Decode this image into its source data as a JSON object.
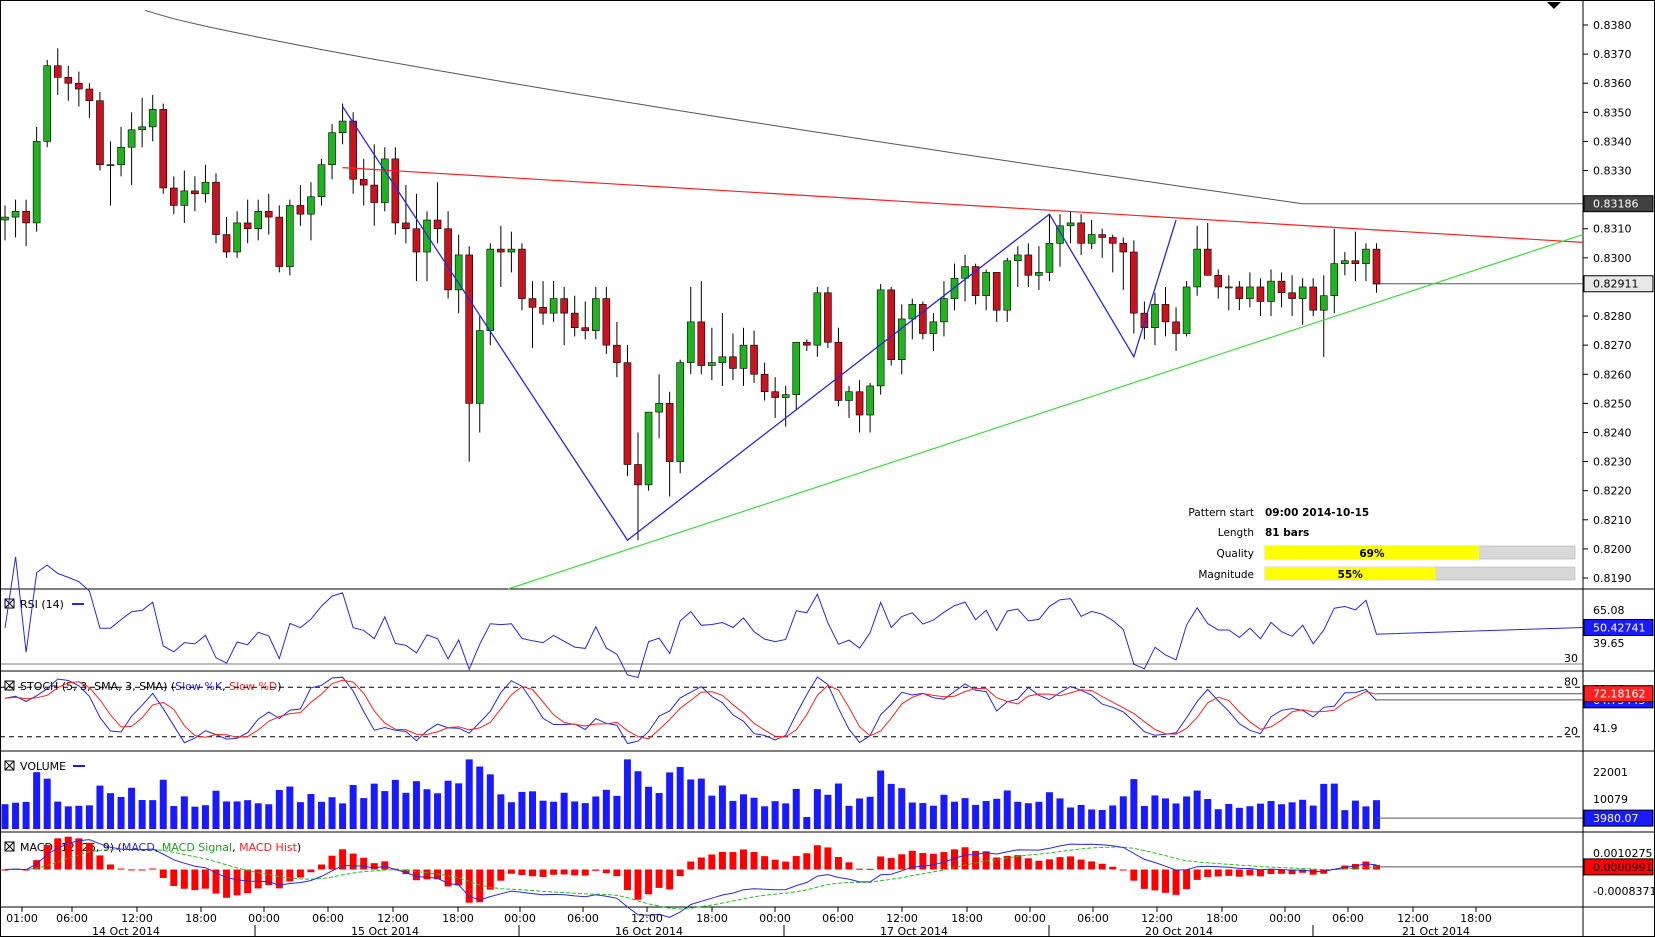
{
  "colors": {
    "bull": "#1fb41f",
    "bear": "#c8141e",
    "resistance": "#ff2020",
    "support": "#3cdc3c",
    "pattern": "#2828e0",
    "ma": "#555555",
    "rsi": "#2828e0",
    "stoch_k": "#2828e0",
    "stoch_d": "#ff2020",
    "volume": "#1a1aff",
    "macd": "#2828e0",
    "signal": "#20c020",
    "hist": "#ff0000",
    "quality_fill": "#ffff00"
  },
  "info": {
    "pattern_start_label": "Pattern start",
    "pattern_start_value": "09:00 2014-10-15",
    "length_label": "Length",
    "length_value": "81 bars",
    "quality_label": "Quality",
    "quality_value": "69%",
    "quality_fraction": 0.69,
    "magnitude_label": "Magnitude",
    "magnitude_value": "55%",
    "magnitude_fraction": 0.55
  },
  "panes": {
    "rsi": {
      "title": "RSI (14)",
      "value_box": "50.42741",
      "ticks": [
        "65.08",
        "39.65",
        "30"
      ]
    },
    "stoch": {
      "title_prefix": "STOCH (5, 3, SMA, 3, SMA) (",
      "k_label": "Slow %K",
      "sep": ", ",
      "d_label": "Slow %D",
      "title_suffix": ")",
      "value_box": "72.18162",
      "value_box2": "64.75443",
      "ticks": [
        "80",
        "41.9",
        "20"
      ],
      "top_tick": "81.09"
    },
    "volume": {
      "title": "VOLUME",
      "value_box": "3980.07",
      "ticks": [
        "22001",
        "10079"
      ]
    },
    "macd": {
      "title_prefix": "MACD (12, 26, 9) (",
      "macd_label": "MACD",
      "sep1": ", ",
      "signal_label": "MACD Signal",
      "sep2": ", ",
      "hist_label": "MACD Hist",
      "title_suffix": ")",
      "value_box": "0.0000991",
      "ticks": [
        "-0.0008371"
      ],
      "top_tick": "0.0010275"
    }
  },
  "price_axis": {
    "ticks": [
      "0.8380",
      "0.8370",
      "0.8360",
      "0.8350",
      "0.8340",
      "0.8330",
      "0.8320",
      "0.8310",
      "0.8300",
      "0.8290",
      "0.8280",
      "0.8270",
      "0.8260",
      "0.8250",
      "0.8240",
      "0.8230",
      "0.8220",
      "0.8210",
      "0.8200",
      "0.8190"
    ],
    "ma_box": "0.83186",
    "last_box": "0.82911"
  },
  "time_axis": {
    "hours": [
      "01:00",
      "06:00",
      "12:00",
      "18:00",
      "00:00",
      "06:00",
      "12:00",
      "18:00",
      "00:00",
      "06:00",
      "12:00",
      "18:00",
      "00:00",
      "06:00",
      "12:00",
      "18:00",
      "00:00",
      "06:00",
      "12:00",
      "18:00",
      "00:00",
      "06:00",
      "12:00",
      "18:00"
    ],
    "dates": [
      "14 Oct 2014",
      "15 Oct 2014",
      "16 Oct 2014",
      "17 Oct 2014",
      "20 Oct 2014",
      "21 Oct 2014"
    ]
  },
  "chart_data": {
    "type": "candlestick",
    "interval": "hourly",
    "x_range": [
      "2014-10-14 01:00",
      "2014-10-21 06:00"
    ],
    "y_range": [
      0.8185,
      0.8385
    ],
    "candles_ohlc": [
      [
        0.8313,
        0.8318,
        0.8306,
        0.8314
      ],
      [
        0.8314,
        0.832,
        0.8307,
        0.8316
      ],
      [
        0.8316,
        0.832,
        0.8304,
        0.8312
      ],
      [
        0.8312,
        0.8345,
        0.8309,
        0.834
      ],
      [
        0.834,
        0.8368,
        0.8338,
        0.8366
      ],
      [
        0.8366,
        0.8372,
        0.8356,
        0.8362
      ],
      [
        0.8362,
        0.8366,
        0.8354,
        0.836
      ],
      [
        0.836,
        0.8364,
        0.8352,
        0.8358
      ],
      [
        0.8358,
        0.836,
        0.8348,
        0.8354
      ],
      [
        0.8354,
        0.8357,
        0.833,
        0.8332
      ],
      [
        0.8332,
        0.834,
        0.8318,
        0.8332
      ],
      [
        0.8332,
        0.8345,
        0.8328,
        0.8338
      ],
      [
        0.8338,
        0.835,
        0.8325,
        0.8344
      ],
      [
        0.8344,
        0.8355,
        0.8338,
        0.8345
      ],
      [
        0.8345,
        0.8356,
        0.834,
        0.8351
      ],
      [
        0.8351,
        0.8353,
        0.8322,
        0.8324
      ],
      [
        0.8324,
        0.8328,
        0.8315,
        0.8318
      ],
      [
        0.8318,
        0.833,
        0.8312,
        0.8323
      ],
      [
        0.8323,
        0.8328,
        0.8316,
        0.8322
      ],
      [
        0.8322,
        0.8332,
        0.8319,
        0.8326
      ],
      [
        0.8326,
        0.8329,
        0.8305,
        0.8308
      ],
      [
        0.8308,
        0.8314,
        0.83,
        0.8302
      ],
      [
        0.8302,
        0.8316,
        0.83,
        0.8312
      ],
      [
        0.8312,
        0.832,
        0.8305,
        0.831
      ],
      [
        0.831,
        0.832,
        0.8306,
        0.8316
      ],
      [
        0.8316,
        0.8322,
        0.8308,
        0.8314
      ],
      [
        0.8314,
        0.8318,
        0.8295,
        0.8297
      ],
      [
        0.8297,
        0.832,
        0.8294,
        0.8318
      ],
      [
        0.8318,
        0.8325,
        0.8311,
        0.8315
      ],
      [
        0.8315,
        0.8326,
        0.8306,
        0.8321
      ],
      [
        0.8321,
        0.8334,
        0.8318,
        0.8332
      ],
      [
        0.8332,
        0.8346,
        0.8327,
        0.8343
      ],
      [
        0.8343,
        0.8353,
        0.8339,
        0.8347
      ],
      [
        0.8347,
        0.835,
        0.8322,
        0.8327
      ],
      [
        0.8327,
        0.8334,
        0.8318,
        0.8325
      ],
      [
        0.8325,
        0.8339,
        0.8311,
        0.8319
      ],
      [
        0.8319,
        0.8338,
        0.8316,
        0.8334
      ],
      [
        0.8334,
        0.8338,
        0.8308,
        0.8312
      ],
      [
        0.8312,
        0.8325,
        0.8305,
        0.831
      ],
      [
        0.831,
        0.8322,
        0.8292,
        0.8302
      ],
      [
        0.8302,
        0.8316,
        0.8292,
        0.8313
      ],
      [
        0.8313,
        0.8326,
        0.8305,
        0.831
      ],
      [
        0.831,
        0.8316,
        0.8286,
        0.8289
      ],
      [
        0.8289,
        0.8308,
        0.8281,
        0.8301
      ],
      [
        0.8301,
        0.8304,
        0.823,
        0.825
      ],
      [
        0.825,
        0.828,
        0.824,
        0.8275
      ],
      [
        0.8275,
        0.8305,
        0.827,
        0.8303
      ],
      [
        0.8303,
        0.8311,
        0.829,
        0.8302
      ],
      [
        0.8302,
        0.8309,
        0.8295,
        0.8303
      ],
      [
        0.8303,
        0.8305,
        0.8282,
        0.8286
      ],
      [
        0.8286,
        0.8292,
        0.8269,
        0.8283
      ],
      [
        0.8283,
        0.8292,
        0.8277,
        0.8281
      ],
      [
        0.8281,
        0.8292,
        0.8278,
        0.8286
      ],
      [
        0.8286,
        0.829,
        0.827,
        0.8281
      ],
      [
        0.8281,
        0.8287,
        0.8273,
        0.8276
      ],
      [
        0.8276,
        0.8285,
        0.8272,
        0.8275
      ],
      [
        0.8275,
        0.829,
        0.8272,
        0.8286
      ],
      [
        0.8286,
        0.829,
        0.8267,
        0.827
      ],
      [
        0.827,
        0.8278,
        0.8259,
        0.8264
      ],
      [
        0.8264,
        0.827,
        0.8225,
        0.8229
      ],
      [
        0.8229,
        0.824,
        0.8203,
        0.8222
      ],
      [
        0.8222,
        0.8246,
        0.822,
        0.8247
      ],
      [
        0.8247,
        0.826,
        0.8238,
        0.825
      ],
      [
        0.825,
        0.8254,
        0.8218,
        0.823
      ],
      [
        0.823,
        0.8265,
        0.8226,
        0.8264
      ],
      [
        0.8264,
        0.829,
        0.826,
        0.8278
      ],
      [
        0.8278,
        0.8292,
        0.826,
        0.8263
      ],
      [
        0.8263,
        0.8276,
        0.8258,
        0.8264
      ],
      [
        0.8264,
        0.8281,
        0.8256,
        0.8266
      ],
      [
        0.8266,
        0.8274,
        0.8258,
        0.8262
      ],
      [
        0.8262,
        0.8276,
        0.8256,
        0.827
      ],
      [
        0.827,
        0.8275,
        0.8257,
        0.826
      ],
      [
        0.826,
        0.8264,
        0.8251,
        0.8254
      ],
      [
        0.8254,
        0.8259,
        0.8245,
        0.8252
      ],
      [
        0.8252,
        0.8256,
        0.8242,
        0.8253
      ],
      [
        0.8253,
        0.8271,
        0.8248,
        0.8271
      ],
      [
        0.8271,
        0.8272,
        0.8268,
        0.827
      ],
      [
        0.827,
        0.829,
        0.8266,
        0.8288
      ],
      [
        0.8288,
        0.829,
        0.8269,
        0.8271
      ],
      [
        0.8271,
        0.8276,
        0.8249,
        0.8251
      ],
      [
        0.8251,
        0.8256,
        0.8245,
        0.8254
      ],
      [
        0.8254,
        0.8258,
        0.824,
        0.8246
      ],
      [
        0.8246,
        0.8257,
        0.824,
        0.8256
      ],
      [
        0.8256,
        0.8291,
        0.8253,
        0.8289
      ],
      [
        0.8289,
        0.829,
        0.8263,
        0.8265
      ],
      [
        0.8265,
        0.8284,
        0.826,
        0.8279
      ],
      [
        0.8279,
        0.8286,
        0.8272,
        0.8284
      ],
      [
        0.8284,
        0.8285,
        0.8272,
        0.8274
      ],
      [
        0.8274,
        0.8281,
        0.8268,
        0.8278
      ],
      [
        0.8278,
        0.8292,
        0.8273,
        0.8286
      ],
      [
        0.8286,
        0.8298,
        0.8282,
        0.8293
      ],
      [
        0.8293,
        0.8301,
        0.8285,
        0.8297
      ],
      [
        0.8297,
        0.8298,
        0.8284,
        0.8287
      ],
      [
        0.8287,
        0.8296,
        0.8282,
        0.8295
      ],
      [
        0.8295,
        0.8295,
        0.8278,
        0.8282
      ],
      [
        0.8282,
        0.83,
        0.8278,
        0.8299
      ],
      [
        0.8299,
        0.8304,
        0.829,
        0.8301
      ],
      [
        0.8301,
        0.8305,
        0.829,
        0.8294
      ],
      [
        0.8294,
        0.8304,
        0.8289,
        0.8295
      ],
      [
        0.8295,
        0.8315,
        0.8292,
        0.8305
      ],
      [
        0.8305,
        0.8315,
        0.8297,
        0.8311
      ],
      [
        0.8311,
        0.8316,
        0.8305,
        0.8312
      ],
      [
        0.8312,
        0.8315,
        0.8301,
        0.8305
      ],
      [
        0.8305,
        0.8313,
        0.8303,
        0.8308
      ],
      [
        0.8308,
        0.831,
        0.83,
        0.8307
      ],
      [
        0.8307,
        0.8308,
        0.8295,
        0.8305
      ],
      [
        0.8305,
        0.8307,
        0.8289,
        0.8302
      ],
      [
        0.8302,
        0.8306,
        0.8274,
        0.8281
      ],
      [
        0.8281,
        0.8285,
        0.8272,
        0.8276
      ],
      [
        0.8276,
        0.8288,
        0.827,
        0.8284
      ],
      [
        0.8284,
        0.829,
        0.8273,
        0.8278
      ],
      [
        0.8278,
        0.8283,
        0.8268,
        0.8274
      ],
      [
        0.8274,
        0.8292,
        0.8273,
        0.829
      ],
      [
        0.829,
        0.8311,
        0.8287,
        0.8303
      ],
      [
        0.8303,
        0.8312,
        0.8295,
        0.8294
      ],
      [
        0.8294,
        0.8296,
        0.8286,
        0.829
      ],
      [
        0.829,
        0.8294,
        0.8282,
        0.829
      ],
      [
        0.829,
        0.8292,
        0.8282,
        0.8286
      ],
      [
        0.8286,
        0.8295,
        0.8283,
        0.829
      ],
      [
        0.829,
        0.8293,
        0.828,
        0.8285
      ],
      [
        0.8285,
        0.8296,
        0.828,
        0.8292
      ],
      [
        0.8292,
        0.8295,
        0.8283,
        0.8288
      ],
      [
        0.8288,
        0.8294,
        0.828,
        0.8286
      ],
      [
        0.8286,
        0.8293,
        0.8277,
        0.829
      ],
      [
        0.829,
        0.8293,
        0.828,
        0.8282
      ],
      [
        0.8282,
        0.8294,
        0.8266,
        0.8287
      ],
      [
        0.8287,
        0.831,
        0.8281,
        0.8298
      ],
      [
        0.8298,
        0.8302,
        0.8294,
        0.8299
      ],
      [
        0.8299,
        0.8309,
        0.8292,
        0.8298
      ],
      [
        0.8298,
        0.8305,
        0.8292,
        0.8303
      ],
      [
        0.8303,
        0.8305,
        0.8288,
        0.8291
      ]
    ],
    "pattern": {
      "name": "Triangle",
      "resistance": [
        [
          "2014-10-15 09:00",
          0.8331
        ],
        [
          "2014-10-21 09:00",
          0.8306
        ]
      ],
      "support": [
        [
          "2014-10-15 19:00",
          0.819
        ],
        [
          "2014-10-21 09:00",
          0.8307
        ]
      ],
      "zigzag": [
        0.8352,
        0.8203,
        0.8315,
        0.8266,
        0.8313
      ]
    },
    "moving_average": {
      "start": 0.8385,
      "end": 0.83186
    },
    "last_price": 0.82911,
    "rsi": {
      "range": [
        26,
        70
      ],
      "levels": [
        30
      ],
      "last": 50.42741
    },
    "stochastic": {
      "range": [
        10,
        90
      ],
      "levels": [
        20,
        80
      ],
      "last_k": 72.18162,
      "last_d": 64.75443
    },
    "volume": {
      "max": 26000,
      "last": 3980.07
    },
    "macd": {
      "range": [
        -0.0012,
        0.0012
      ],
      "last": 9.91e-05
    }
  }
}
